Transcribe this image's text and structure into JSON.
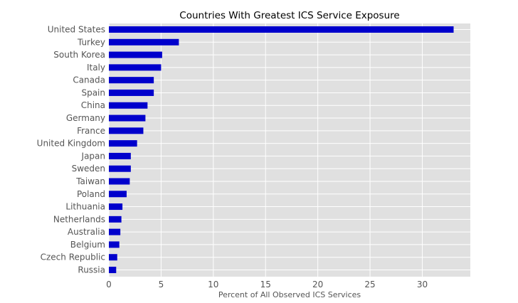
{
  "chart_data": {
    "type": "bar",
    "orientation": "horizontal",
    "title": "Countries With Greatest ICS Service Exposure",
    "xlabel": "Percent of All Observed ICS Services",
    "ylabel": "",
    "categories": [
      "United States",
      "Turkey",
      "South Korea",
      "Italy",
      "Canada",
      "Spain",
      "China",
      "Germany",
      "France",
      "United Kingdom",
      "Japan",
      "Sweden",
      "Taiwan",
      "Poland",
      "Lithuania",
      "Netherlands",
      "Australia",
      "Belgium",
      "Czech Republic",
      "Russia"
    ],
    "values": [
      33.0,
      6.7,
      5.1,
      5.0,
      4.3,
      4.3,
      3.7,
      3.5,
      3.3,
      2.7,
      2.1,
      2.1,
      2.0,
      1.7,
      1.3,
      1.2,
      1.1,
      1.0,
      0.8,
      0.7
    ],
    "xlim": [
      0,
      34.6
    ],
    "xticks": [
      0,
      5,
      10,
      15,
      20,
      25,
      30
    ],
    "grid": true,
    "colors": {
      "bar": "#0000cc",
      "plot_bg": "#e0e0e0",
      "grid": "#ffffff"
    }
  }
}
